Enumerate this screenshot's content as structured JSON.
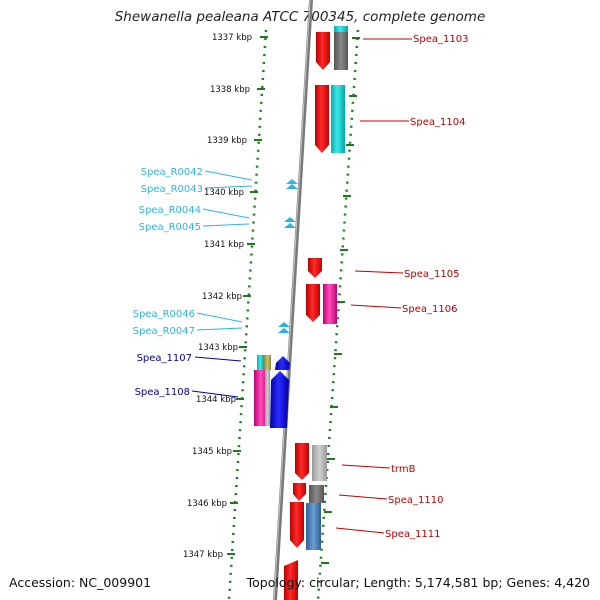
{
  "title": "Shewanella pealeana ATCC 700345, complete genome",
  "accession": "Accession: NC_009901",
  "topology": "Topology: circular; Length: 5,174,581 bp; Genes: 4,420",
  "colors": {
    "gene_label": "#c00000",
    "rna_label": "#2eb5e0",
    "blue_label": "#0000aa",
    "scale": "#1d7a1d",
    "backbone": "#7a7a7a"
  },
  "scale_labels": [
    "1337 kbp",
    "1338 kbp",
    "1339 kbp",
    "1340 kbp",
    "1341 kbp",
    "1342 kbp",
    "1343 kbp",
    "1344 kbp",
    "1345 kbp",
    "1346 kbp",
    "1347 kbp"
  ],
  "gene_labels_right": [
    "Spea_1103",
    "Spea_1104",
    "Spea_1105",
    "Spea_1106",
    "trmB",
    "Spea_1110",
    "Spea_1111"
  ],
  "rna_labels_left": [
    "Spea_R0042",
    "Spea_R0043",
    "Spea_R0044",
    "Spea_R0045",
    "Spea_R0046",
    "Spea_R0047"
  ],
  "gene_labels_left": [
    "Spea_1107",
    "Spea_1108"
  ]
}
